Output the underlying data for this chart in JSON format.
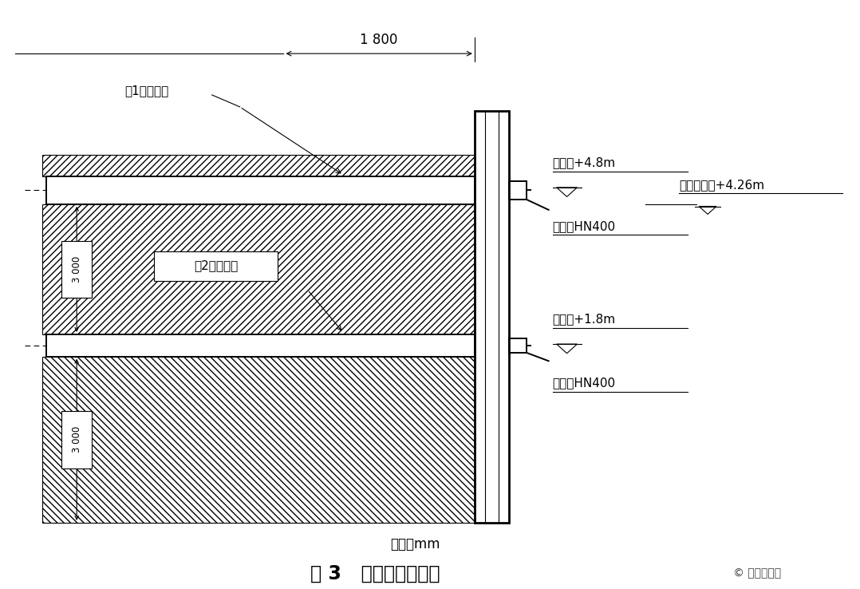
{
  "title": "图 3   外圈梁设置图示",
  "subtitle": "单位：mm",
  "bg_color": "#ffffff",
  "line_color": "#000000",
  "dimension_1800": "1 800",
  "label_layer1_inner": "第1层内支撑",
  "label_layer2_inner": "第2层内支撑",
  "label_layer1_elev": "第一层+4.8m",
  "label_layer2_elev": "第二层+1.8m",
  "label_outer_beam1": "外圈梁HN400",
  "label_outer_beam2": "外圈梁HN400",
  "label_design_water": "设计高水位+4.26m",
  "label_3000_top": "3 000",
  "label_3000_bot": "3 000",
  "watermark": "拉森钗板桩"
}
